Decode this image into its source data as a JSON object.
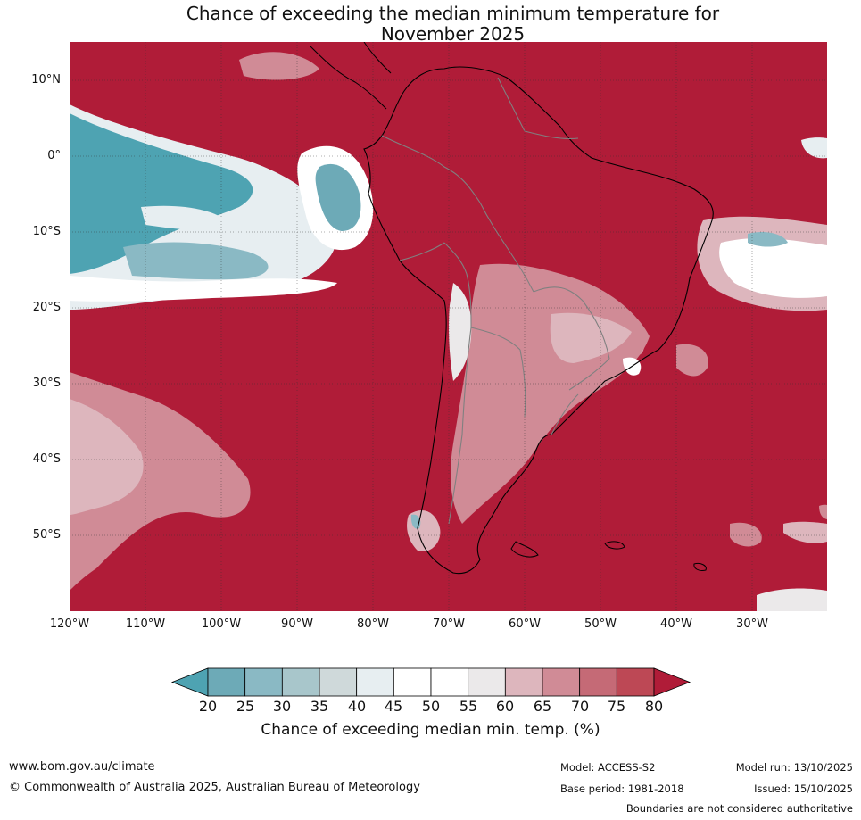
{
  "title": {
    "line1": "Chance of exceeding the median minimum temperature for",
    "line2": "November 2025"
  },
  "lat_labels": [
    "10°N",
    "0°",
    "10°S",
    "20°S",
    "30°S",
    "40°S",
    "50°S"
  ],
  "lon_labels": [
    "120°W",
    "110°W",
    "100°W",
    "90°W",
    "80°W",
    "70°W",
    "60°W",
    "50°W",
    "40°W",
    "30°W"
  ],
  "colorbar": {
    "ticks": [
      "20",
      "25",
      "30",
      "35",
      "40",
      "45",
      "50",
      "55",
      "60",
      "65",
      "70",
      "75",
      "80"
    ],
    "colors": [
      "#4ea3b2",
      "#6daab7",
      "#8ab9c4",
      "#a8c6cb",
      "#cfd9da",
      "#e7eef1",
      "#ffffff",
      "#ffffff",
      "#ebe9ea",
      "#ddb6bd",
      "#d08b96",
      "#c56a76",
      "#bd4855",
      "#b01c38"
    ],
    "label": "Chance of exceeding median min. temp. (%)"
  },
  "colors": {
    "dominant": "#b01c38",
    "cool": "#4ea3b2",
    "coast": "#000000",
    "border": "#808080"
  },
  "footer": {
    "website": "www.bom.gov.au/climate",
    "copyright": "© Commonwealth of Australia 2025, Australian Bureau of Meteorology",
    "model": "Model: ACCESS-S2",
    "base_period": "Base period: 1981-2018",
    "model_run": "Model run: 13/10/2025",
    "issued": "Issued: 15/10/2025",
    "disclaimer": "Boundaries are not considered authoritative"
  }
}
